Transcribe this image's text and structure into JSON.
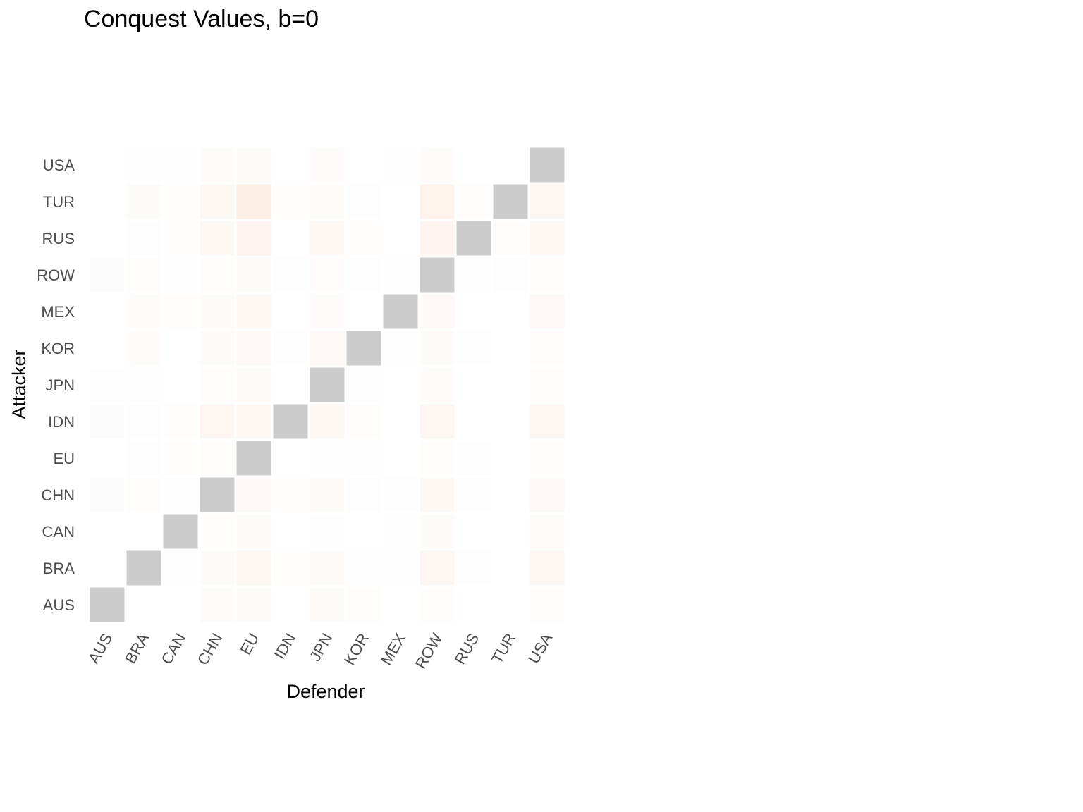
{
  "chart_data": {
    "type": "heatmap",
    "title": "Conquest Values, b=0",
    "xlabel": "Defender",
    "ylabel": "Attacker",
    "x_categories": [
      "AUS",
      "BRA",
      "CAN",
      "CHN",
      "EU",
      "IDN",
      "JPN",
      "KOR",
      "MEX",
      "ROW",
      "RUS",
      "TUR",
      "USA"
    ],
    "y_categories": [
      "AUS",
      "BRA",
      "CAN",
      "CHN",
      "EU",
      "IDN",
      "JPN",
      "KOR",
      "MEX",
      "ROW",
      "RUS",
      "TUR",
      "USA"
    ],
    "color_scale": {
      "low_color": "#f2f2f4",
      "mid_color": "#ffffff",
      "high_color": "#f6c2a8",
      "diagonal_color": "#cccccc",
      "range": [
        -1,
        1
      ]
    },
    "legend": "none",
    "grid": false,
    "values": [
      [
        null,
        0,
        0,
        0.06,
        0.08,
        0,
        0.08,
        0.05,
        0,
        0.05,
        0,
        0,
        0.03
      ],
      [
        0,
        null,
        -0.05,
        0.08,
        0.15,
        0.02,
        0.08,
        -0.1,
        -0.1,
        0.14,
        -0.15,
        0,
        0.14
      ],
      [
        0,
        0,
        null,
        0.05,
        0.08,
        0,
        -0.15,
        0,
        -0.1,
        0.08,
        0,
        0,
        0.06
      ],
      [
        -0.2,
        0.04,
        -0.1,
        null,
        0.1,
        0.02,
        0.08,
        -0.15,
        -0.15,
        0.12,
        -0.15,
        0,
        0.1
      ],
      [
        0,
        -0.15,
        0.03,
        0.04,
        null,
        0,
        -0.05,
        -0.05,
        0,
        0.04,
        -0.15,
        0,
        0.04
      ],
      [
        -0.2,
        -0.15,
        0.03,
        0.14,
        0.12,
        null,
        0.12,
        0.05,
        0,
        0.15,
        0,
        0,
        0.14
      ],
      [
        -0.15,
        -0.1,
        0,
        0.05,
        0.08,
        0,
        null,
        -0.05,
        0,
        0.06,
        0,
        0,
        0.05
      ],
      [
        0,
        0.06,
        0,
        0.08,
        0.1,
        -0.15,
        0.1,
        null,
        -0.05,
        0.08,
        -0.15,
        0,
        0.05
      ],
      [
        0,
        0.06,
        0.05,
        0.08,
        0.12,
        0,
        0.06,
        0,
        null,
        0.1,
        0,
        0,
        0.1
      ],
      [
        -0.2,
        0.04,
        -0.1,
        0.05,
        0.08,
        -0.15,
        0.05,
        -0.15,
        -0.1,
        null,
        -0.1,
        -0.15,
        0.05
      ],
      [
        0,
        -0.15,
        0.02,
        0.12,
        0.18,
        0,
        0.12,
        0.02,
        0,
        0.16,
        null,
        0.04,
        0.12
      ],
      [
        0,
        0.08,
        0.02,
        0.12,
        0.3,
        0.02,
        0.07,
        -0.15,
        0,
        0.22,
        0.04,
        null,
        0.14
      ],
      [
        0,
        -0.1,
        -0.1,
        0.06,
        0.08,
        0,
        0.06,
        0,
        -0.1,
        0.06,
        0,
        0,
        null
      ]
    ]
  }
}
